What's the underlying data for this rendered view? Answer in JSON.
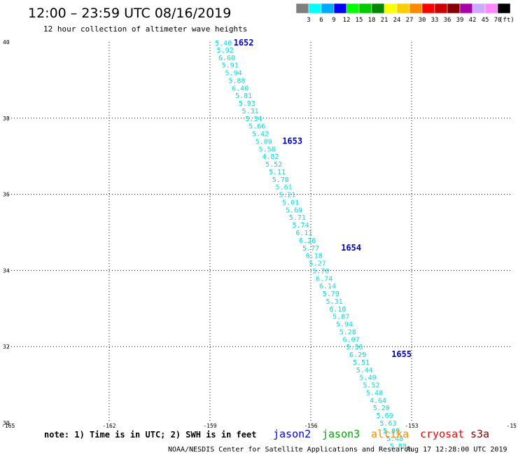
{
  "header": {
    "title": "12:00 – 23:59 UTC 08/16/2019",
    "subtitle": "12 hour collection of altimeter wave heights"
  },
  "legend": {
    "units": "(ft)",
    "bins": [
      {
        "label": "3",
        "color": "#7f7f7f"
      },
      {
        "label": "6",
        "color": "#00ffff"
      },
      {
        "label": "9",
        "color": "#00aaff"
      },
      {
        "label": "12",
        "color": "#0000ff"
      },
      {
        "label": "15",
        "color": "#00ff00"
      },
      {
        "label": "18",
        "color": "#00cc00"
      },
      {
        "label": "21",
        "color": "#008800"
      },
      {
        "label": "24",
        "color": "#ffff00"
      },
      {
        "label": "27",
        "color": "#ffcc00"
      },
      {
        "label": "30",
        "color": "#ff8800"
      },
      {
        "label": "33",
        "color": "#ff0000"
      },
      {
        "label": "36",
        "color": "#cc0000"
      },
      {
        "label": "39",
        "color": "#880000"
      },
      {
        "label": "42",
        "color": "#aa00aa"
      },
      {
        "label": "45",
        "color": "#ccaaff"
      },
      {
        "label": "70",
        "color": "#ff88ff"
      },
      {
        "label": "",
        "color": "#000000"
      }
    ]
  },
  "map": {
    "lon_range": [
      -165,
      -150
    ],
    "lat_range": [
      30,
      40
    ],
    "x_ticks": [
      "-165",
      "-162",
      "-159",
      "-156",
      "-153",
      "-15"
    ],
    "y_ticks": [
      "40",
      "38",
      "36",
      "34",
      "32",
      "30"
    ],
    "grid": "dotted",
    "track_color": "#00e0e0",
    "time_color": "#0000cc"
  },
  "track": [
    {
      "lon": -158.6,
      "lat": 39.98,
      "v": "5.40"
    },
    {
      "lon": -158.55,
      "lat": 39.8,
      "v": "5.92"
    },
    {
      "lon": -158.5,
      "lat": 39.6,
      "v": "6.60"
    },
    {
      "lon": -158.4,
      "lat": 39.4,
      "v": "5.91"
    },
    {
      "lon": -158.3,
      "lat": 39.2,
      "v": "5.94"
    },
    {
      "lon": -158.2,
      "lat": 39.0,
      "v": "5.88"
    },
    {
      "lon": -158.1,
      "lat": 38.8,
      "v": "6.40"
    },
    {
      "lon": -158.0,
      "lat": 38.6,
      "v": "5.81"
    },
    {
      "lon": -157.9,
      "lat": 38.4,
      "v": "5.93"
    },
    {
      "lon": -157.8,
      "lat": 38.2,
      "v": "5.31"
    },
    {
      "lon": -157.7,
      "lat": 38.0,
      "v": "5.34"
    },
    {
      "lon": -157.6,
      "lat": 37.8,
      "v": "5.66"
    },
    {
      "lon": -157.5,
      "lat": 37.6,
      "v": "5.42"
    },
    {
      "lon": -157.4,
      "lat": 37.4,
      "v": "5.09"
    },
    {
      "lon": -157.3,
      "lat": 37.2,
      "v": "5.58"
    },
    {
      "lon": -157.2,
      "lat": 37.0,
      "v": "4.82"
    },
    {
      "lon": -157.1,
      "lat": 36.8,
      "v": "5.52"
    },
    {
      "lon": -157.0,
      "lat": 36.6,
      "v": "5.11"
    },
    {
      "lon": -156.9,
      "lat": 36.4,
      "v": "5.78"
    },
    {
      "lon": -156.8,
      "lat": 36.2,
      "v": "5.61"
    },
    {
      "lon": -156.7,
      "lat": 36.0,
      "v": "5.21"
    },
    {
      "lon": -156.6,
      "lat": 35.8,
      "v": "5.01"
    },
    {
      "lon": -156.5,
      "lat": 35.6,
      "v": "5.69"
    },
    {
      "lon": -156.4,
      "lat": 35.4,
      "v": "5.71"
    },
    {
      "lon": -156.3,
      "lat": 35.2,
      "v": "5.74"
    },
    {
      "lon": -156.2,
      "lat": 35.0,
      "v": "6.11"
    },
    {
      "lon": -156.1,
      "lat": 34.8,
      "v": "6.26"
    },
    {
      "lon": -156.0,
      "lat": 34.6,
      "v": "5.77"
    },
    {
      "lon": -155.9,
      "lat": 34.4,
      "v": "6.18"
    },
    {
      "lon": -155.8,
      "lat": 34.2,
      "v": "5.27"
    },
    {
      "lon": -155.7,
      "lat": 34.0,
      "v": "5.70"
    },
    {
      "lon": -155.6,
      "lat": 33.8,
      "v": "6.74"
    },
    {
      "lon": -155.5,
      "lat": 33.6,
      "v": "6.14"
    },
    {
      "lon": -155.4,
      "lat": 33.4,
      "v": "5.79"
    },
    {
      "lon": -155.3,
      "lat": 33.2,
      "v": "5.31"
    },
    {
      "lon": -155.2,
      "lat": 33.0,
      "v": "6.10"
    },
    {
      "lon": -155.1,
      "lat": 32.8,
      "v": "5.87"
    },
    {
      "lon": -155.0,
      "lat": 32.6,
      "v": "5.94"
    },
    {
      "lon": -154.9,
      "lat": 32.4,
      "v": "5.28"
    },
    {
      "lon": -154.8,
      "lat": 32.2,
      "v": "6.07"
    },
    {
      "lon": -154.7,
      "lat": 32.0,
      "v": "5.36"
    },
    {
      "lon": -154.6,
      "lat": 31.8,
      "v": "6.29"
    },
    {
      "lon": -154.5,
      "lat": 31.6,
      "v": "5.51"
    },
    {
      "lon": -154.4,
      "lat": 31.4,
      "v": "5.44"
    },
    {
      "lon": -154.3,
      "lat": 31.2,
      "v": "5.49"
    },
    {
      "lon": -154.2,
      "lat": 31.0,
      "v": "5.52"
    },
    {
      "lon": -154.1,
      "lat": 30.8,
      "v": "5.48"
    },
    {
      "lon": -154.0,
      "lat": 30.6,
      "v": "4.64"
    },
    {
      "lon": -153.9,
      "lat": 30.4,
      "v": "5.20"
    },
    {
      "lon": -153.8,
      "lat": 30.2,
      "v": "5.69"
    },
    {
      "lon": -153.7,
      "lat": 30.0,
      "v": "5.63"
    },
    {
      "lon": -153.6,
      "lat": 29.8,
      "v": "5.99"
    },
    {
      "lon": -153.5,
      "lat": 29.6,
      "v": "5.48"
    },
    {
      "lon": -153.4,
      "lat": 29.4,
      "v": "5.89"
    }
  ],
  "times": [
    {
      "lon": -158.3,
      "lat": 39.98,
      "label": "1652"
    },
    {
      "lon": -156.85,
      "lat": 37.4,
      "label": "1653"
    },
    {
      "lon": -155.1,
      "lat": 34.6,
      "label": "1654"
    },
    {
      "lon": -153.6,
      "lat": 31.8,
      "label": "1655"
    }
  ],
  "satellites": [
    {
      "name": "jason2",
      "color": "#0000ff"
    },
    {
      "name": "jason3",
      "color": "#00aa00"
    },
    {
      "name": "altika",
      "color": "#ff8800"
    },
    {
      "name": "cryosat",
      "color": "#ff0000"
    },
    {
      "name": "s3a",
      "color": "#880000"
    }
  ],
  "footer": {
    "note": "note: 1) Time is in UTC; 2) SWH is in feet",
    "credit": "NOAA/NESDIS Center for Satellite Applications and Research",
    "timestamp": "Aug 17 12:28:00 UTC 2019"
  }
}
